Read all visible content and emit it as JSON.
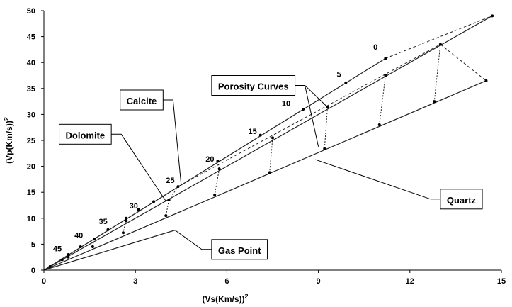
{
  "chart_data": {
    "type": "line",
    "title": "",
    "xlabel": "(Vs(Km/s))",
    "xlabel_sup": "2",
    "ylabel": "(Vp(Km/s))",
    "ylabel_sup": "2",
    "xlim": [
      0,
      15
    ],
    "ylim": [
      0,
      50
    ],
    "x_ticks": [
      "0",
      "3",
      "6",
      "9",
      "12",
      "15"
    ],
    "y_ticks": [
      "0",
      "5",
      "10",
      "15",
      "20",
      "25",
      "30",
      "35",
      "40",
      "45",
      "50"
    ],
    "grid": false,
    "legend": "none",
    "lines": [
      {
        "name": "Calcite",
        "points": [
          [
            0,
            0
          ],
          [
            11.2,
            40.8
          ]
        ]
      },
      {
        "name": "Dolomite",
        "points": [
          [
            0,
            0
          ],
          [
            14.7,
            49.0
          ]
        ]
      },
      {
        "name": "Quartz",
        "points": [
          [
            0,
            0
          ],
          [
            14.5,
            36.5
          ]
        ]
      },
      {
        "name": "Gas Point",
        "points": [
          [
            0,
            0
          ],
          [
            4.3,
            7.7
          ]
        ]
      }
    ],
    "porosity_lines": [
      [
        [
          11.2,
          40.8
        ],
        [
          14.7,
          49.0
        ]
      ],
      [
        [
          4.4,
          16.1
        ],
        [
          13.0,
          43.5
        ]
      ],
      [
        [
          13.0,
          43.5
        ],
        [
          14.5,
          36.5
        ]
      ]
    ],
    "markers": [
      [
        0.2,
        0.7
      ],
      [
        0.6,
        2.0
      ],
      [
        0.8,
        3.0
      ],
      [
        1.2,
        4.5
      ],
      [
        1.65,
        6.0
      ],
      [
        2.1,
        7.8
      ],
      [
        2.7,
        10.0
      ],
      [
        3.1,
        11.7
      ],
      [
        3.6,
        13.2
      ],
      [
        4.4,
        16.1
      ],
      [
        5.7,
        21.0
      ],
      [
        7.1,
        26.0
      ],
      [
        8.5,
        31.0
      ],
      [
        9.9,
        36.1
      ],
      [
        11.2,
        40.8
      ],
      [
        0.8,
        2.5
      ],
      [
        1.6,
        4.5
      ],
      [
        2.7,
        9.5
      ],
      [
        4.1,
        13.5
      ],
      [
        5.75,
        19.5
      ],
      [
        7.5,
        25.5
      ],
      [
        9.3,
        31.4
      ],
      [
        11.2,
        37.5
      ],
      [
        13.0,
        43.5
      ],
      [
        14.7,
        49.0
      ],
      [
        2.6,
        7.2
      ],
      [
        4.0,
        10.5
      ],
      [
        5.6,
        14.5
      ],
      [
        7.4,
        18.8
      ],
      [
        9.2,
        23.4
      ],
      [
        11.0,
        28.0
      ],
      [
        12.8,
        32.5
      ],
      [
        14.5,
        36.5
      ]
    ],
    "tie_lines": [
      [
        [
          0.8,
          3.0
        ],
        [
          0.8,
          2.5
        ]
      ],
      [
        [
          1.65,
          6.0
        ],
        [
          1.6,
          4.5
        ]
      ],
      [
        [
          2.7,
          10.0
        ],
        [
          2.6,
          7.2
        ]
      ],
      [
        [
          4.4,
          16.1
        ],
        [
          4.1,
          13.5
        ]
      ],
      [
        [
          4.1,
          13.5
        ],
        [
          4.0,
          10.5
        ]
      ],
      [
        [
          5.7,
          21.0
        ],
        [
          5.75,
          19.5
        ]
      ],
      [
        [
          5.75,
          19.5
        ],
        [
          5.6,
          14.5
        ]
      ],
      [
        [
          7.5,
          25.5
        ],
        [
          7.4,
          18.8
        ]
      ],
      [
        [
          9.3,
          31.4
        ],
        [
          9.2,
          23.4
        ]
      ],
      [
        [
          11.2,
          37.5
        ],
        [
          11.0,
          28.0
        ]
      ],
      [
        [
          13.0,
          43.5
        ],
        [
          12.8,
          32.5
        ]
      ]
    ],
    "porosity_labels": [
      {
        "text": "0",
        "x": 10.8,
        "y": 42.5
      },
      {
        "text": "5",
        "x": 9.6,
        "y": 37.2
      },
      {
        "text": "10",
        "x": 7.8,
        "y": 31.6
      },
      {
        "text": "15",
        "x": 6.7,
        "y": 26.2
      },
      {
        "text": "20",
        "x": 5.3,
        "y": 20.9
      },
      {
        "text": "25",
        "x": 4.0,
        "y": 16.8
      },
      {
        "text": "30",
        "x": 2.8,
        "y": 11.9
      },
      {
        "text": "35",
        "x": 1.8,
        "y": 8.9
      },
      {
        "text": "40",
        "x": 1.0,
        "y": 6.2
      },
      {
        "text": "45",
        "x": 0.3,
        "y": 3.6
      }
    ],
    "callouts": [
      {
        "text": "Porosity Curves",
        "x": 5.5,
        "y": 37.5,
        "targets": [
          [
            9.3,
            31.4
          ],
          [
            9.0,
            23.8
          ]
        ]
      },
      {
        "text": "Calcite",
        "x": 2.5,
        "y": 34.7,
        "targets": [
          [
            4.5,
            16.5
          ]
        ]
      },
      {
        "text": "Dolomite",
        "x": 0.5,
        "y": 28.1,
        "targets": [
          [
            4.0,
            13.3
          ]
        ]
      },
      {
        "text": "Quartz",
        "x": 13.0,
        "y": 15.6,
        "targets": [
          [
            8.9,
            21.3
          ]
        ]
      },
      {
        "text": "Gas Point",
        "x": 5.5,
        "y": 5.9,
        "targets": [
          [
            4.3,
            7.7
          ]
        ]
      }
    ]
  }
}
